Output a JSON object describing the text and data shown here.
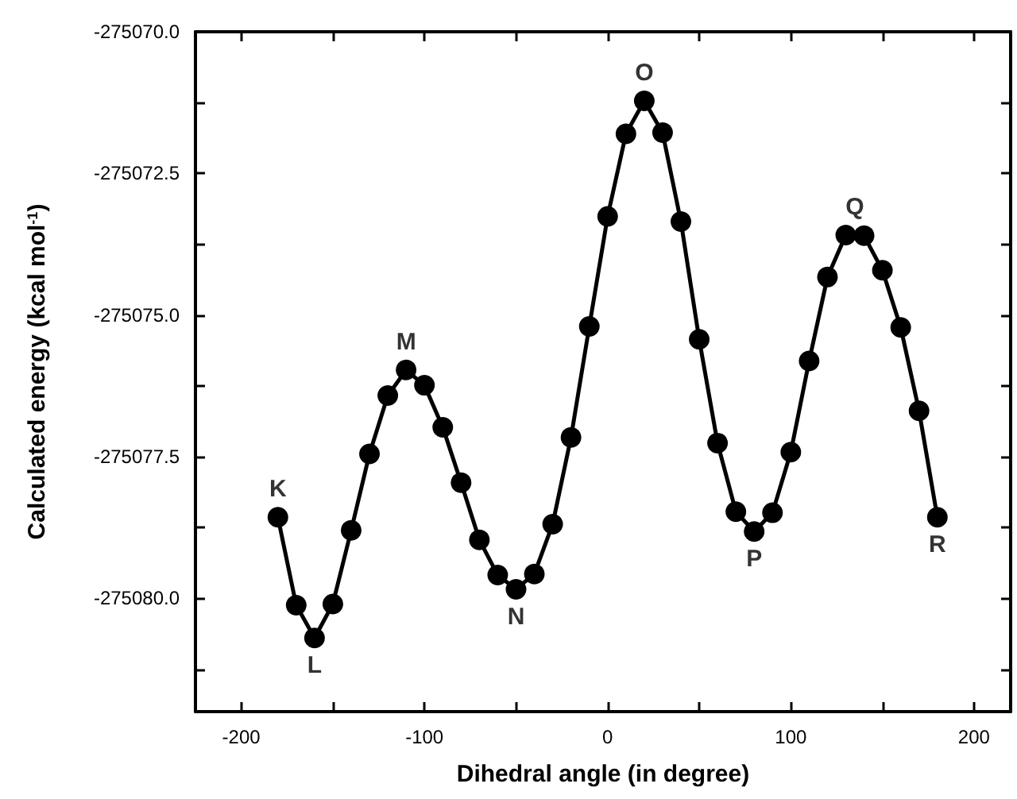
{
  "chart_data": {
    "type": "line",
    "xlabel": "Dihedral angle (in degree)",
    "ylabel": "Calculated energy (kcal mol$^{-1}$)",
    "x": [
      -180,
      -170,
      -160,
      -150,
      -140,
      -130,
      -120,
      -110,
      -100,
      -90,
      -80,
      -70,
      -60,
      -50,
      -40,
      -30,
      -20,
      -10,
      0,
      10,
      20,
      30,
      40,
      50,
      60,
      70,
      80,
      90,
      100,
      110,
      120,
      130,
      140,
      150,
      160,
      170,
      180
    ],
    "series": [
      {
        "color": "#000000",
        "values": [
          -275078.57,
          -275080.12,
          -275080.7,
          -275080.1,
          -275078.8,
          -275077.45,
          -275076.42,
          -275075.97,
          -275076.24,
          -275076.98,
          -275077.96,
          -275078.97,
          -275079.59,
          -275079.84,
          -275079.57,
          -275078.69,
          -275077.16,
          -275075.2,
          -275073.26,
          -275071.8,
          -275071.22,
          -275071.78,
          -275073.35,
          -275075.43,
          -275077.26,
          -275078.47,
          -275078.82,
          -275078.49,
          -275077.42,
          -275075.81,
          -275074.33,
          -275073.59,
          -275073.6,
          -275074.21,
          -275075.22,
          -275076.69,
          -275078.57
        ]
      }
    ],
    "annotations": [
      {
        "text": "K",
        "x": -180,
        "y": -275078.57
      },
      {
        "text": "L",
        "x": -160,
        "y": -275080.7
      },
      {
        "text": "M",
        "x": -110,
        "y": -275075.97
      },
      {
        "text": "N",
        "x": -50,
        "y": -275079.84
      },
      {
        "text": "O",
        "x": 20,
        "y": -275071.22
      },
      {
        "text": "P",
        "x": 80,
        "y": -275078.82
      },
      {
        "text": "Q",
        "x": 135,
        "y": -275073.59
      },
      {
        "text": "R",
        "x": 180,
        "y": -275078.57
      }
    ],
    "xlim": [
      -225,
      220
    ],
    "ylim": [
      -275082,
      -275070
    ],
    "xticks": [
      -200,
      {
        "value": -150,
        "label": null
      },
      -100,
      {
        "value": -50,
        "label": null
      },
      0,
      {
        "value": 50,
        "label": null
      },
      100,
      {
        "value": 150,
        "label": null
      },
      200
    ],
    "yticks": [
      {
        "value": -275081.25,
        "label": null
      },
      {
        "value": -275080,
        "label": "-275080.0"
      },
      {
        "value": -275078.75,
        "label": null
      },
      {
        "value": -275077.5,
        "label": "-275077.5"
      },
      {
        "value": -275076.25,
        "label": null
      },
      {
        "value": -275075,
        "label": "-275075.0"
      },
      {
        "value": -275073.75,
        "label": null
      },
      {
        "value": -275072.5,
        "label": "-275072.5"
      },
      {
        "value": -275071.25,
        "label": null
      },
      {
        "value": -275070,
        "label": "-275070.0"
      }
    ],
    "marker": "circle",
    "line_style": "solid"
  }
}
